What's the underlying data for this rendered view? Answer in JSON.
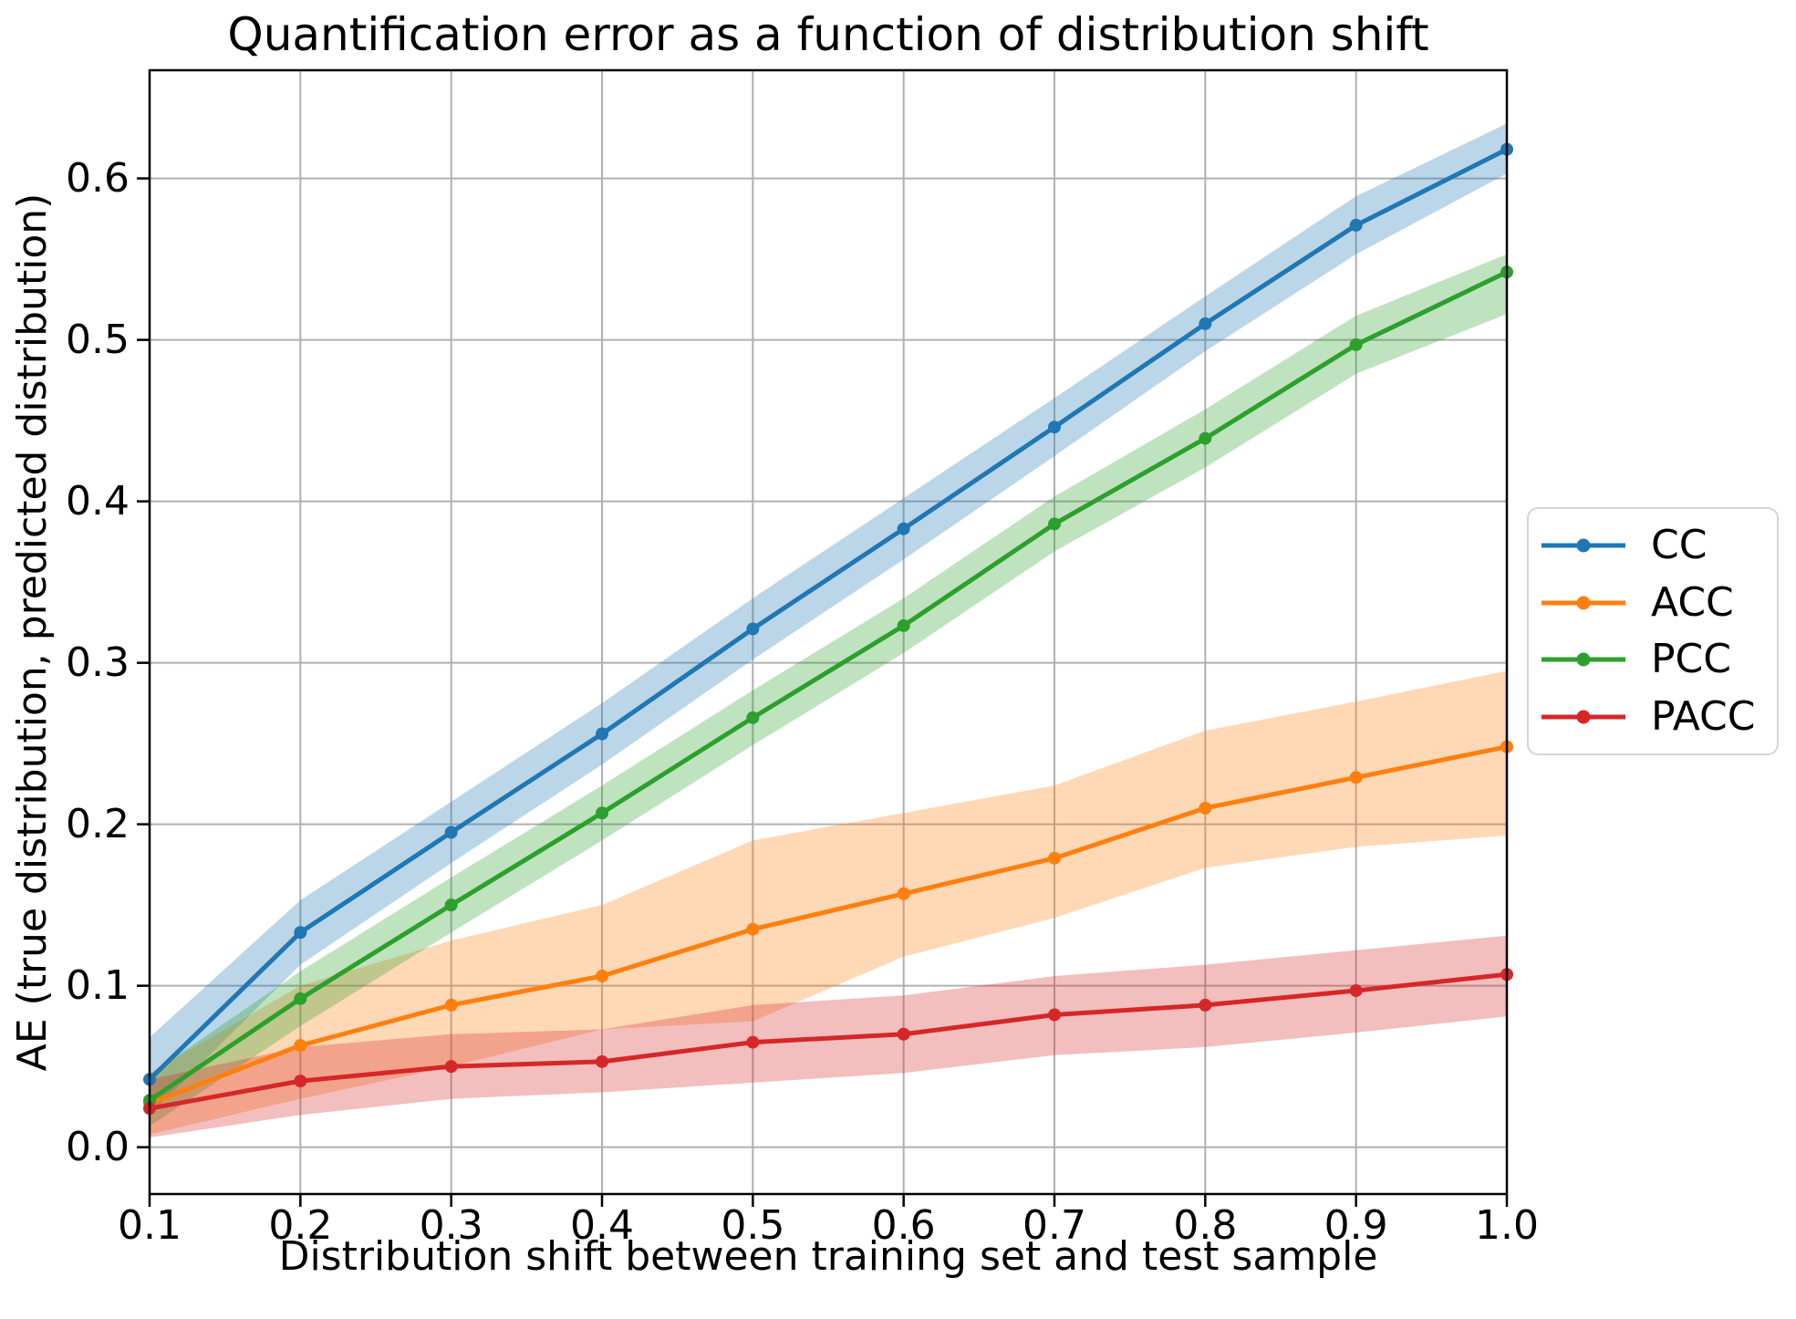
{
  "chart_data": {
    "type": "line",
    "title": "Quantification error as a function of distribution shift",
    "xlabel": "Distribution shift between training set and test sample",
    "ylabel": "AE (true distribution, predicted distribution)",
    "x": [
      0.1,
      0.2,
      0.3,
      0.4,
      0.5,
      0.6,
      0.7,
      0.8,
      0.9,
      1.0
    ],
    "xlim": [
      0.1,
      1.0
    ],
    "ylim": [
      -0.029,
      0.667
    ],
    "xticks": [
      0.1,
      0.2,
      0.3,
      0.4,
      0.5,
      0.6,
      0.7,
      0.8,
      0.9,
      1.0
    ],
    "xtick_labels": [
      "0.1",
      "0.2",
      "0.3",
      "0.4",
      "0.5",
      "0.6",
      "0.7",
      "0.8",
      "0.9",
      "1.0"
    ],
    "yticks": [
      0.0,
      0.1,
      0.2,
      0.3,
      0.4,
      0.5,
      0.6
    ],
    "ytick_labels": [
      "0.0",
      "0.1",
      "0.2",
      "0.3",
      "0.4",
      "0.5",
      "0.6"
    ],
    "grid": true,
    "grid_color": "#b0b0b0",
    "spine_color": "#000000",
    "band_alpha": 0.3,
    "legend_position": "outside-right",
    "series": [
      {
        "name": "CC",
        "color": "#1f77b4",
        "values": [
          0.042,
          0.133,
          0.195,
          0.256,
          0.321,
          0.383,
          0.446,
          0.51,
          0.571,
          0.618
        ],
        "band_lower": [
          0.02,
          0.113,
          0.176,
          0.237,
          0.302,
          0.364,
          0.428,
          0.493,
          0.553,
          0.603
        ],
        "band_upper": [
          0.068,
          0.153,
          0.214,
          0.275,
          0.34,
          0.402,
          0.464,
          0.527,
          0.589,
          0.634
        ]
      },
      {
        "name": "ACC",
        "color": "#ff7f0e",
        "values": [
          0.027,
          0.063,
          0.088,
          0.106,
          0.135,
          0.157,
          0.179,
          0.21,
          0.229,
          0.248
        ],
        "band_lower": [
          0.008,
          0.03,
          0.05,
          0.073,
          0.078,
          0.118,
          0.142,
          0.173,
          0.186,
          0.193
        ],
        "band_upper": [
          0.046,
          0.1,
          0.128,
          0.15,
          0.19,
          0.207,
          0.224,
          0.258,
          0.276,
          0.295
        ]
      },
      {
        "name": "PCC",
        "color": "#2ca02c",
        "values": [
          0.029,
          0.092,
          0.15,
          0.207,
          0.266,
          0.323,
          0.386,
          0.439,
          0.497,
          0.542
        ],
        "band_lower": [
          0.013,
          0.075,
          0.133,
          0.19,
          0.249,
          0.306,
          0.369,
          0.421,
          0.479,
          0.516
        ],
        "band_upper": [
          0.045,
          0.109,
          0.167,
          0.224,
          0.283,
          0.34,
          0.403,
          0.457,
          0.515,
          0.553
        ]
      },
      {
        "name": "PACC",
        "color": "#d62728",
        "values": [
          0.024,
          0.041,
          0.05,
          0.053,
          0.065,
          0.07,
          0.082,
          0.088,
          0.097,
          0.107
        ],
        "band_lower": [
          0.006,
          0.02,
          0.03,
          0.034,
          0.04,
          0.046,
          0.057,
          0.062,
          0.071,
          0.081
        ],
        "band_upper": [
          0.042,
          0.062,
          0.07,
          0.073,
          0.088,
          0.094,
          0.106,
          0.113,
          0.122,
          0.131
        ]
      }
    ]
  }
}
